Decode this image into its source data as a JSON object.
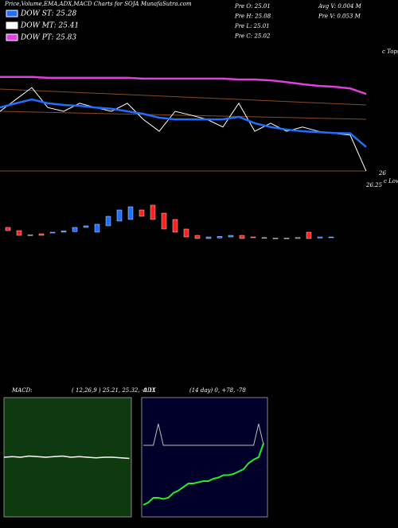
{
  "header": {
    "title": "Price,Volume,EMA,ADX,MACD Charts for SOJA MunafaSutra.com"
  },
  "legend": [
    {
      "label": "DOW ST: 25.28",
      "color": "#1e6fff"
    },
    {
      "label": "DOW MT: 25.41",
      "color": "#ffffff"
    },
    {
      "label": "DOW PT: 25.83",
      "color": "#e040e0"
    }
  ],
  "stats": {
    "left": [
      "Pre  O: 25.01",
      "Pre  H: 25.08",
      "Pre  L: 25.01",
      "Pre  C: 25.02"
    ],
    "right": [
      "Avg V: 0.004  M",
      "Pre  V: 0.053 M"
    ]
  },
  "price_panel": {
    "tops_label": "c Tops",
    "lows_label": "c Lows",
    "price_labels": [
      "26",
      "26.25"
    ],
    "ylim": [
      24,
      27
    ],
    "lines": [
      {
        "color": "#e040e0",
        "values": [
          26.31,
          26.31,
          26.31,
          26.29,
          26.29,
          26.29,
          26.29,
          26.29,
          26.29,
          26.27,
          26.27,
          26.27,
          26.27,
          26.27,
          26.27,
          26.25,
          26.25,
          26.23,
          26.19,
          26.14,
          26.1,
          26.08,
          26.04,
          25.91
        ]
      },
      {
        "color": "#ffffff",
        "values": [
          25.5,
          25.78,
          26.06,
          25.59,
          25.5,
          25.69,
          25.59,
          25.5,
          25.69,
          25.31,
          25.03,
          25.5,
          25.41,
          25.31,
          25.13,
          25.69,
          25.03,
          25.22,
          25.03,
          25.13,
          25.03,
          24.98,
          24.94,
          24.09
        ]
      },
      {
        "color": "#1e6fff",
        "values": [
          25.59,
          25.69,
          25.78,
          25.69,
          25.65,
          25.63,
          25.59,
          25.56,
          25.5,
          25.44,
          25.35,
          25.31,
          25.31,
          25.31,
          25.31,
          25.37,
          25.22,
          25.13,
          25.07,
          25.03,
          25.01,
          24.99,
          24.98,
          24.66
        ]
      }
    ]
  },
  "candle_panel": {
    "ylim": [
      24.4,
      26.4
    ],
    "up_color": "#1e6fff",
    "down_color": "#ff2020",
    "open": [
      25.25,
      25.15,
      25.0,
      25.05,
      25.08,
      25.1,
      25.12,
      25.25,
      25.1,
      25.3,
      25.45,
      25.5,
      25.8,
      25.95,
      25.7,
      25.5,
      25.2,
      25.0,
      24.9,
      24.92,
      24.95,
      25.0,
      24.95,
      24.93,
      24.92,
      24.92,
      24.9,
      25.1,
      24.92,
      24.95
    ],
    "close": [
      25.15,
      25.0,
      25.02,
      25.0,
      25.1,
      25.14,
      25.25,
      25.3,
      25.35,
      25.6,
      25.8,
      25.9,
      25.6,
      25.5,
      25.2,
      25.1,
      24.95,
      24.9,
      24.95,
      24.97,
      25.0,
      24.9,
      24.93,
      24.92,
      24.92,
      24.9,
      24.93,
      24.9,
      24.95,
      24.95
    ]
  },
  "macd": {
    "label": "MACD:",
    "params": "( 12,26,9 ) 25.21, 25.32, -0.11",
    "ylim": [
      -1,
      1
    ],
    "values": [
      0.0,
      0.01,
      0.0,
      0.02,
      0.01,
      0.0,
      0.01,
      0.02,
      0.0,
      0.01,
      0.0,
      -0.01,
      0.0,
      0.0,
      -0.01,
      -0.02
    ]
  },
  "adx": {
    "label": "ADX",
    "params": "(14 day) 0, +78, -78",
    "ylim": [
      0,
      100
    ],
    "adx_values": [
      60,
      60,
      60,
      78,
      60,
      60,
      60,
      60,
      60,
      60,
      60,
      60,
      60,
      60,
      60,
      60,
      60,
      60,
      60,
      60,
      60,
      60,
      60,
      78,
      60
    ],
    "di_values": [
      10,
      12,
      16,
      16,
      15,
      16,
      20,
      22,
      25,
      28,
      28,
      29,
      30,
      30,
      32,
      33,
      35,
      35,
      36,
      38,
      40,
      45,
      48,
      50,
      62
    ]
  }
}
